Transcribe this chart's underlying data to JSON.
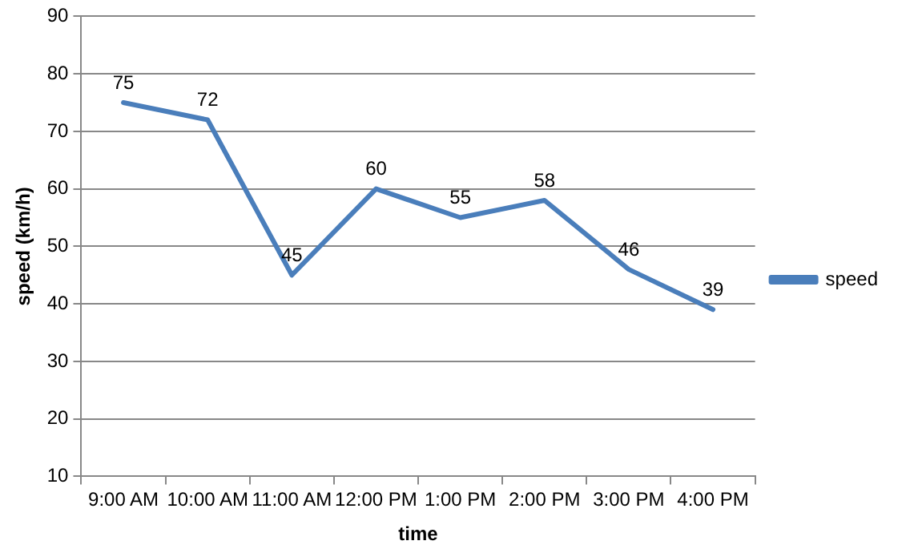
{
  "chart_data": {
    "type": "line",
    "xlabel": "time",
    "ylabel": "speed (km/h)",
    "categories": [
      "9:00 AM",
      "10:00 AM",
      "11:00 AM",
      "12:00 PM",
      "1:00 PM",
      "2:00 PM",
      "3:00 PM",
      "4:00 PM"
    ],
    "series": [
      {
        "name": "speed",
        "color": "#4a7ebb",
        "values": [
          75,
          72,
          45,
          60,
          55,
          58,
          46,
          39
        ]
      }
    ],
    "ylim": [
      10,
      90
    ],
    "yticks": [
      10,
      20,
      30,
      40,
      50,
      60,
      70,
      80,
      90
    ],
    "grid": "y",
    "legend": "right",
    "marker": "none",
    "line_style": "solid",
    "data_labels": true
  }
}
